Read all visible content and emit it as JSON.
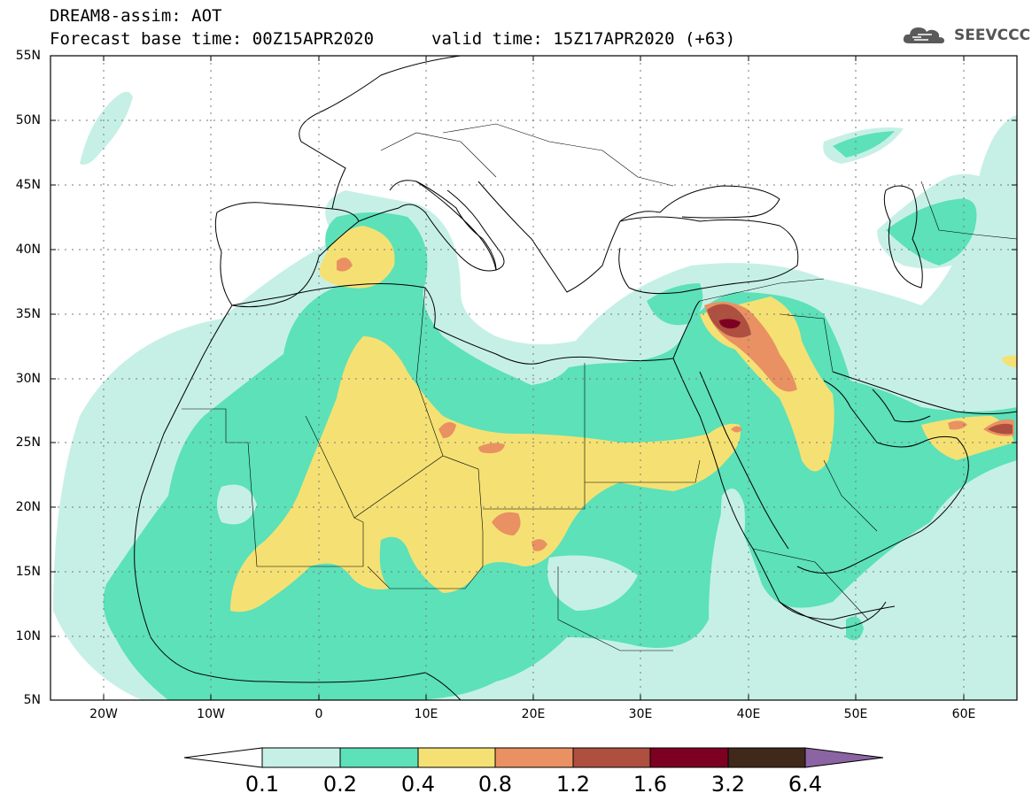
{
  "header": {
    "title_line1": "DREAM8-assim: AOT",
    "title_line2": "Forecast base time: 00Z15APR2020",
    "valid_time": "valid time: 15Z17APR2020 (+63)",
    "logo_text": "SEEVCCC",
    "logo_icon": "cloud-icon"
  },
  "map": {
    "lat_labels": [
      "55N",
      "50N",
      "45N",
      "40N",
      "35N",
      "30N",
      "25N",
      "20N",
      "15N",
      "10N",
      "5N"
    ],
    "lon_labels": [
      "20W",
      "10W",
      "0",
      "10E",
      "20E",
      "30E",
      "40E",
      "50E",
      "60E"
    ],
    "lon_range": [
      -25,
      65
    ],
    "lat_range": [
      5,
      55
    ],
    "grid": "dotted"
  },
  "colorbar": {
    "labels": [
      "0.1",
      "0.2",
      "0.4",
      "0.8",
      "1.2",
      "1.6",
      "3.2",
      "6.4"
    ],
    "colors": [
      "#ffffff",
      "#c6f0e6",
      "#5ce1b9",
      "#f5e173",
      "#e99163",
      "#ae4f3f",
      "#7d0022",
      "#40281a",
      "#8b64a4"
    ]
  }
}
